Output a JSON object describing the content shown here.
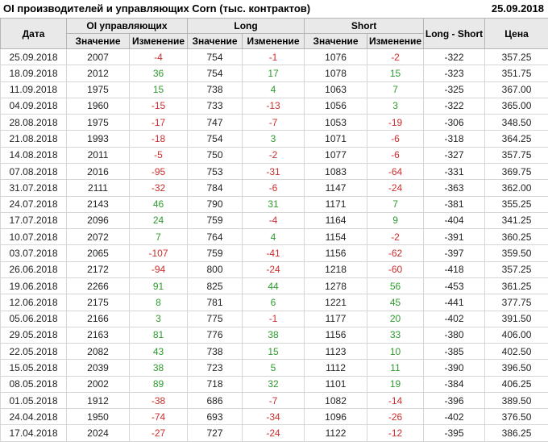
{
  "header": {
    "title": "OI производителей и управляющих Corn (тыс. контрактов)",
    "report_date": "25.09.2018"
  },
  "colors": {
    "positive": "#2e9b2e",
    "negative": "#cc2e2e",
    "header_bg": "#e9e9e9"
  },
  "table": {
    "columns": {
      "date": "Дата",
      "group_oi": "OI управляющих",
      "group_long": "Long",
      "group_short": "Short",
      "long_short": "Long - Short",
      "price": "Цена",
      "sub_value": "Значение",
      "sub_change": "Изменение"
    },
    "rows": [
      [
        "25.09.2018",
        2007,
        -4,
        754,
        -1,
        1076,
        -2,
        -322,
        "357.25"
      ],
      [
        "18.09.2018",
        2012,
        36,
        754,
        17,
        1078,
        15,
        -323,
        "351.75"
      ],
      [
        "11.09.2018",
        1975,
        15,
        738,
        4,
        1063,
        7,
        -325,
        "367.00"
      ],
      [
        "04.09.2018",
        1960,
        -15,
        733,
        -13,
        1056,
        3,
        -322,
        "365.00"
      ],
      [
        "28.08.2018",
        1975,
        -17,
        747,
        -7,
        1053,
        -19,
        -306,
        "348.50"
      ],
      [
        "21.08.2018",
        1993,
        -18,
        754,
        3,
        1071,
        -6,
        -318,
        "364.25"
      ],
      [
        "14.08.2018",
        2011,
        -5,
        750,
        -2,
        1077,
        -6,
        -327,
        "357.75"
      ],
      [
        "07.08.2018",
        2016,
        -95,
        753,
        -31,
        1083,
        -64,
        -331,
        "369.75"
      ],
      [
        "31.07.2018",
        2111,
        -32,
        784,
        -6,
        1147,
        -24,
        -363,
        "362.00"
      ],
      [
        "24.07.2018",
        2143,
        46,
        790,
        31,
        1171,
        7,
        -381,
        "355.25"
      ],
      [
        "17.07.2018",
        2096,
        24,
        759,
        -4,
        1164,
        9,
        -404,
        "341.25"
      ],
      [
        "10.07.2018",
        2072,
        7,
        764,
        4,
        1154,
        -2,
        -391,
        "360.25"
      ],
      [
        "03.07.2018",
        2065,
        -107,
        759,
        -41,
        1156,
        -62,
        -397,
        "359.50"
      ],
      [
        "26.06.2018",
        2172,
        -94,
        800,
        -24,
        1218,
        -60,
        -418,
        "357.25"
      ],
      [
        "19.06.2018",
        2266,
        91,
        825,
        44,
        1278,
        56,
        -453,
        "361.25"
      ],
      [
        "12.06.2018",
        2175,
        8,
        781,
        6,
        1221,
        45,
        -441,
        "377.75"
      ],
      [
        "05.06.2018",
        2166,
        3,
        775,
        -1,
        1177,
        20,
        -402,
        "391.50"
      ],
      [
        "29.05.2018",
        2163,
        81,
        776,
        38,
        1156,
        33,
        -380,
        "406.00"
      ],
      [
        "22.05.2018",
        2082,
        43,
        738,
        15,
        1123,
        10,
        -385,
        "402.50"
      ],
      [
        "15.05.2018",
        2039,
        38,
        723,
        5,
        1112,
        11,
        -390,
        "396.50"
      ],
      [
        "08.05.2018",
        2002,
        89,
        718,
        32,
        1101,
        19,
        -384,
        "406.25"
      ],
      [
        "01.05.2018",
        1912,
        -38,
        686,
        -7,
        1082,
        -14,
        -396,
        "389.50"
      ],
      [
        "24.04.2018",
        1950,
        -74,
        693,
        -34,
        1096,
        -26,
        -402,
        "376.50"
      ],
      [
        "17.04.2018",
        2024,
        -27,
        727,
        -24,
        1122,
        -12,
        -395,
        "386.25"
      ]
    ]
  }
}
